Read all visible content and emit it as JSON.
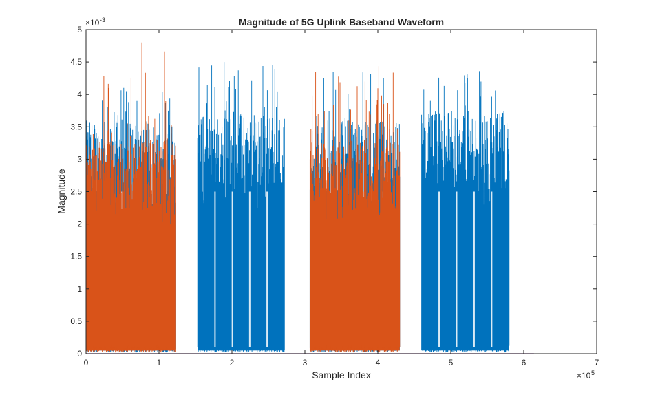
{
  "chart_data": {
    "type": "line",
    "title": "Magnitude of 5G Uplink Baseband Waveform",
    "xlabel": "Sample Index",
    "ylabel": "Magnitude",
    "xlim": [
      0,
      7
    ],
    "ylim": [
      0,
      5
    ],
    "x_exponent_label": "×10",
    "x_exponent": "5",
    "y_exponent_label": "×10",
    "y_exponent": "-3",
    "x_ticks": [
      "0",
      "1",
      "2",
      "3",
      "4",
      "5",
      "6",
      "7"
    ],
    "y_ticks": [
      "0",
      "0.5",
      "1",
      "1.5",
      "2",
      "2.5",
      "3",
      "3.5",
      "4",
      "4.5",
      "5"
    ],
    "x_unit_scale": 100000,
    "y_unit_scale": 0.001,
    "grid": false,
    "colors": {
      "blue": "#0072BD",
      "orange": "#D95319",
      "purple": "#7E2F8E",
      "axis": "#262626"
    },
    "series": [
      {
        "color_key": "blue",
        "bursts": [
          {
            "x_start": 0.0,
            "x_end": 1.23,
            "typical_peak": 3.6,
            "max_peak": 4.1
          },
          {
            "x_start": 1.53,
            "x_end": 2.72,
            "typical_peak": 3.7,
            "max_peak": 4.5
          },
          {
            "x_start": 3.07,
            "x_end": 4.3,
            "typical_peak": 3.6,
            "max_peak": 4.35
          },
          {
            "x_start": 4.6,
            "x_end": 5.8,
            "typical_peak": 3.75,
            "max_peak": 4.4
          }
        ]
      },
      {
        "color_key": "orange",
        "bursts": [
          {
            "x_start": 0.0,
            "x_end": 1.23,
            "typical_peak": 3.3,
            "max_peak": 4.8
          },
          {
            "x_start": 3.07,
            "x_end": 4.3,
            "typical_peak": 3.3,
            "max_peak": 4.45
          }
        ]
      },
      {
        "color_key": "purple",
        "baseline": {
          "x_start": 0.0,
          "x_end": 6.14,
          "value": 0.0
        }
      }
    ]
  }
}
